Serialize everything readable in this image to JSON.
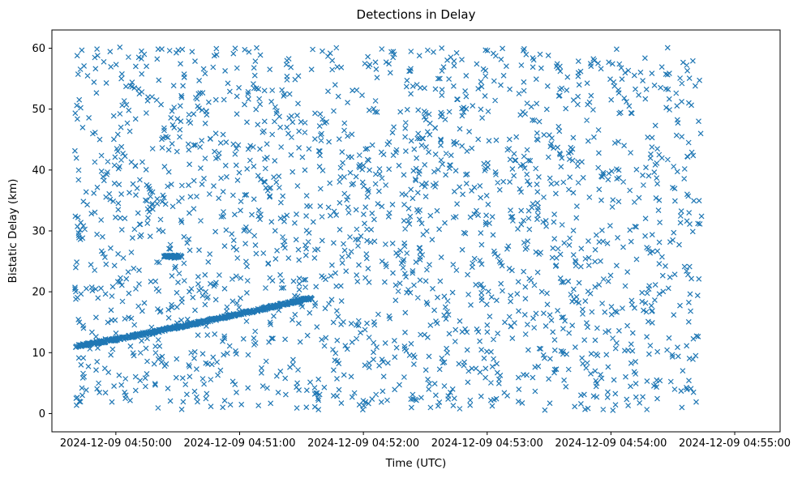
{
  "figure": {
    "title": "Detections in Delay",
    "xlabel": "Time (UTC)",
    "ylabel": "Bistatic Delay (km)"
  },
  "chart_data": {
    "type": "scatter",
    "title": "Detections in Delay",
    "xlabel": "Time (UTC)",
    "ylabel": "Bistatic Delay (km)",
    "marker": "x",
    "marker_color": "#1f77b4",
    "grid": false,
    "legend": "none",
    "x_axis": {
      "tick_labels": [
        "2024-12-09 04:50:00",
        "2024-12-09 04:51:00",
        "2024-12-09 04:52:00",
        "2024-12-09 04:53:00",
        "2024-12-09 04:54:00",
        "2024-12-09 04:55:00"
      ],
      "tick_seconds": [
        0,
        60,
        120,
        180,
        240,
        300
      ],
      "xlim_seconds": [
        -31,
        322
      ]
    },
    "y_axis": {
      "ticks": [
        0,
        10,
        20,
        30,
        40,
        50,
        60
      ],
      "ylim": [
        -3,
        63
      ]
    },
    "noise_detections": {
      "count": 2000,
      "t_range_seconds": [
        -20,
        284
      ],
      "y_range_km": [
        0.5,
        60.2
      ],
      "seed": 7
    },
    "target_track": {
      "description": "dense rising track of detections",
      "t_start_seconds": -19,
      "t_end_seconds": 95,
      "y_start_km": 11.1,
      "y_end_km": 19.0,
      "curve_exponent": 1.1,
      "points": 520,
      "t_jitter_seconds": 1.6,
      "y_jitter_km": 0.22,
      "seed": 13
    },
    "secondary_cluster": {
      "t_center_seconds": 28,
      "y_center_km": 25.8,
      "t_spread_seconds": 5.5,
      "y_spread_km": 0.35,
      "points": 55,
      "seed": 5
    }
  }
}
